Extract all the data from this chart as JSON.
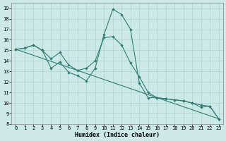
{
  "xlabel": "Humidex (Indice chaleur)",
  "xlim": [
    -0.5,
    23.5
  ],
  "ylim": [
    8,
    19.5
  ],
  "yticks": [
    8,
    9,
    10,
    11,
    12,
    13,
    14,
    15,
    16,
    17,
    18,
    19
  ],
  "xticks": [
    0,
    1,
    2,
    3,
    4,
    5,
    6,
    7,
    8,
    9,
    10,
    11,
    12,
    13,
    14,
    15,
    16,
    17,
    18,
    19,
    20,
    21,
    22,
    23
  ],
  "bg_color": "#cce9e7",
  "grid_color": "#aad4d0",
  "line_color": "#2e7d70",
  "line1_x": [
    0,
    1,
    2,
    3,
    4,
    5,
    6,
    7,
    8,
    9,
    10,
    11,
    12,
    13,
    14,
    15,
    16,
    17,
    18,
    19,
    20,
    21,
    22,
    23
  ],
  "line1_y": [
    15.1,
    15.2,
    15.5,
    15.0,
    13.3,
    13.9,
    12.9,
    12.6,
    12.1,
    13.3,
    16.5,
    18.9,
    18.4,
    17.0,
    11.9,
    10.5,
    10.5,
    10.4,
    10.3,
    10.2,
    10.0,
    9.6,
    9.7,
    8.5
  ],
  "line2_x": [
    0,
    1,
    2,
    3,
    4,
    5,
    6,
    7,
    8,
    9,
    10,
    11,
    12,
    13,
    14,
    15,
    16,
    17,
    18,
    19,
    20,
    21,
    22,
    23
  ],
  "line2_y": [
    15.1,
    15.2,
    15.5,
    15.0,
    14.2,
    14.8,
    13.6,
    13.1,
    13.3,
    14.0,
    16.2,
    16.3,
    15.5,
    13.8,
    12.5,
    11.0,
    10.5,
    10.4,
    10.3,
    10.2,
    10.0,
    9.8,
    9.7,
    8.5
  ],
  "line3_x": [
    0,
    23
  ],
  "line3_y": [
    15.1,
    8.5
  ]
}
